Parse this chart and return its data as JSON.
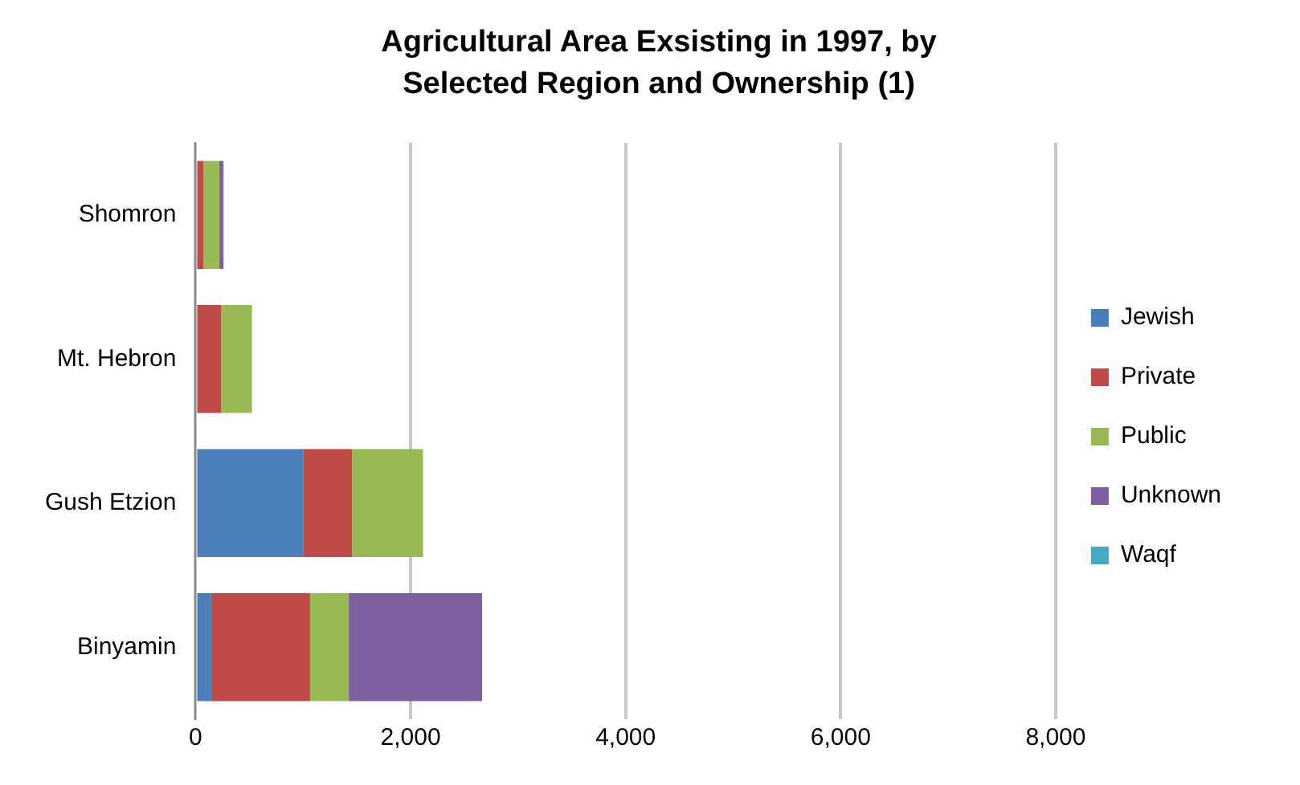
{
  "chart_data": {
    "type": "bar",
    "orientation": "horizontal",
    "stacked": true,
    "title": "Agricultural Area Exsisting in 1997, by Selected Region and Ownership (1)",
    "categories": [
      "Shomron",
      "Mt. Hebron",
      "Gush Etzion",
      "Binyamin"
    ],
    "series": [
      {
        "name": "Jewish",
        "color": "#4a7ebb",
        "values": [
          null,
          null,
          1000,
          145
        ]
      },
      {
        "name": "Private",
        "color": "#be4b48",
        "values": [
          75,
          240,
          455,
          920
        ]
      },
      {
        "name": "Public",
        "color": "#98b954",
        "values": [
          145,
          285,
          660,
          360
        ]
      },
      {
        "name": "Unknown",
        "color": "#7d60a0",
        "values": [
          40,
          null,
          null,
          1240
        ]
      },
      {
        "name": "Waqf",
        "color": "#46aac5",
        "values": [
          null,
          null,
          null,
          null
        ]
      }
    ],
    "xlim": [
      0,
      8000
    ],
    "xticks": [
      0,
      {
        "value": 2000,
        "label": "2,000"
      },
      {
        "value": 4000,
        "label": "4,000"
      },
      {
        "value": 6000,
        "label": "6,000"
      },
      {
        "value": 8000,
        "label": "8,000"
      }
    ],
    "grid": "x",
    "legend": "right"
  }
}
